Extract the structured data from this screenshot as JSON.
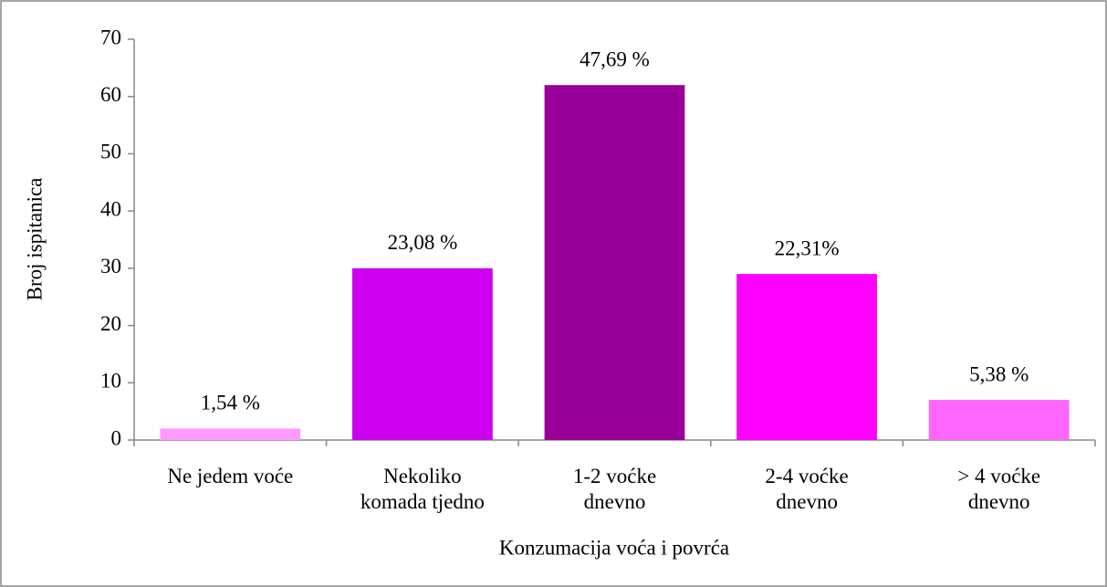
{
  "chart_data": {
    "type": "bar",
    "x_label": "Konzumacija voća i povrća",
    "y_label": "Broj ispitanica",
    "categories": [
      "Ne jedem voće",
      "Nekoliko\nkomada tjedno",
      "1-2 voćke\ndnevno",
      "2-4 voćke\ndnevno",
      "> 4 voćke\ndnevno"
    ],
    "values": [
      2,
      30,
      62,
      29,
      7
    ],
    "percent_labels": [
      "1,54 %",
      "23,08 %",
      "47,69 %",
      "22,31%",
      "5,38 %"
    ],
    "colors": [
      "#ff99ff",
      "#cc00ee",
      "#990099",
      "#ff00ff",
      "#ff66ff"
    ],
    "ylim": [
      0,
      70
    ],
    "yticks": [
      0,
      10,
      20,
      30,
      40,
      50,
      60,
      70
    ],
    "grid": false
  }
}
